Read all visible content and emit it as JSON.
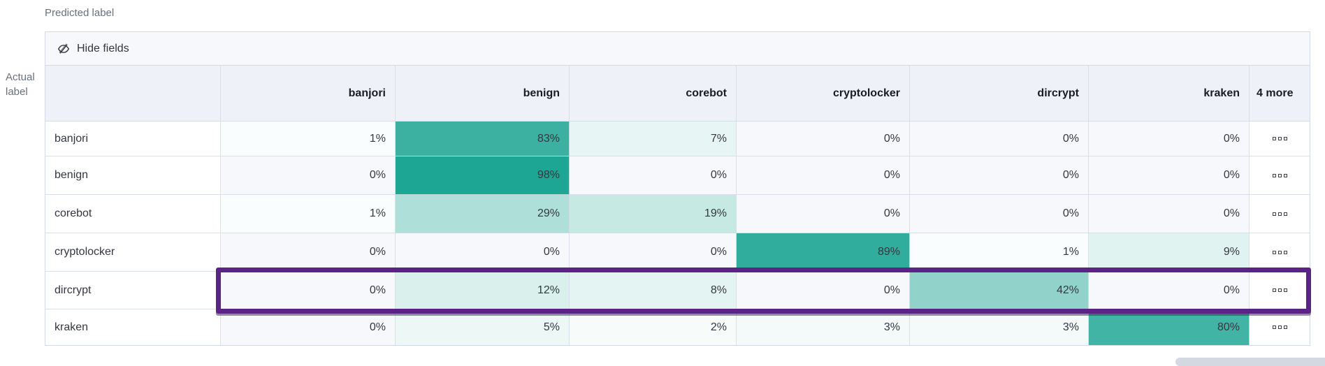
{
  "labels": {
    "predicted": "Predicted label",
    "actual": "Actual label"
  },
  "toolbar": {
    "hide_fields_label": "Hide fields",
    "hide_fields_icon": "eye-closed-icon"
  },
  "chart_data": {
    "type": "heatmap",
    "title": "",
    "x_axis_label": "Predicted label",
    "y_axis_label": "Actual label",
    "value_unit": "%",
    "categories_x": [
      "banjori",
      "benign",
      "corebot",
      "cryptolocker",
      "dircrypt",
      "kraken"
    ],
    "categories_y": [
      "banjori",
      "benign",
      "corebot",
      "cryptolocker",
      "dircrypt",
      "kraken"
    ],
    "rows": [
      {
        "label": "banjori",
        "values": [
          1,
          83,
          7,
          0,
          0,
          0
        ]
      },
      {
        "label": "benign",
        "values": [
          0,
          98,
          0,
          0,
          0,
          0
        ]
      },
      {
        "label": "corebot",
        "values": [
          1,
          29,
          19,
          0,
          0,
          0
        ]
      },
      {
        "label": "cryptolocker",
        "values": [
          0,
          0,
          0,
          89,
          1,
          9
        ]
      },
      {
        "label": "dircrypt",
        "values": [
          0,
          12,
          8,
          0,
          42,
          0
        ]
      },
      {
        "label": "kraken",
        "values": [
          0,
          5,
          2,
          3,
          3,
          80
        ]
      }
    ],
    "overflow_column": {
      "label": "4 more",
      "cell_icon": "boxes-horizontal-icon"
    },
    "highlight": {
      "row": "dircrypt",
      "border_color": "#5b2383"
    },
    "color_scale": {
      "zero": "#f7f8fb",
      "low": "#ffffff",
      "high": "#1aa492",
      "exponent": 0.85
    },
    "legend": "off",
    "grid": "on"
  }
}
